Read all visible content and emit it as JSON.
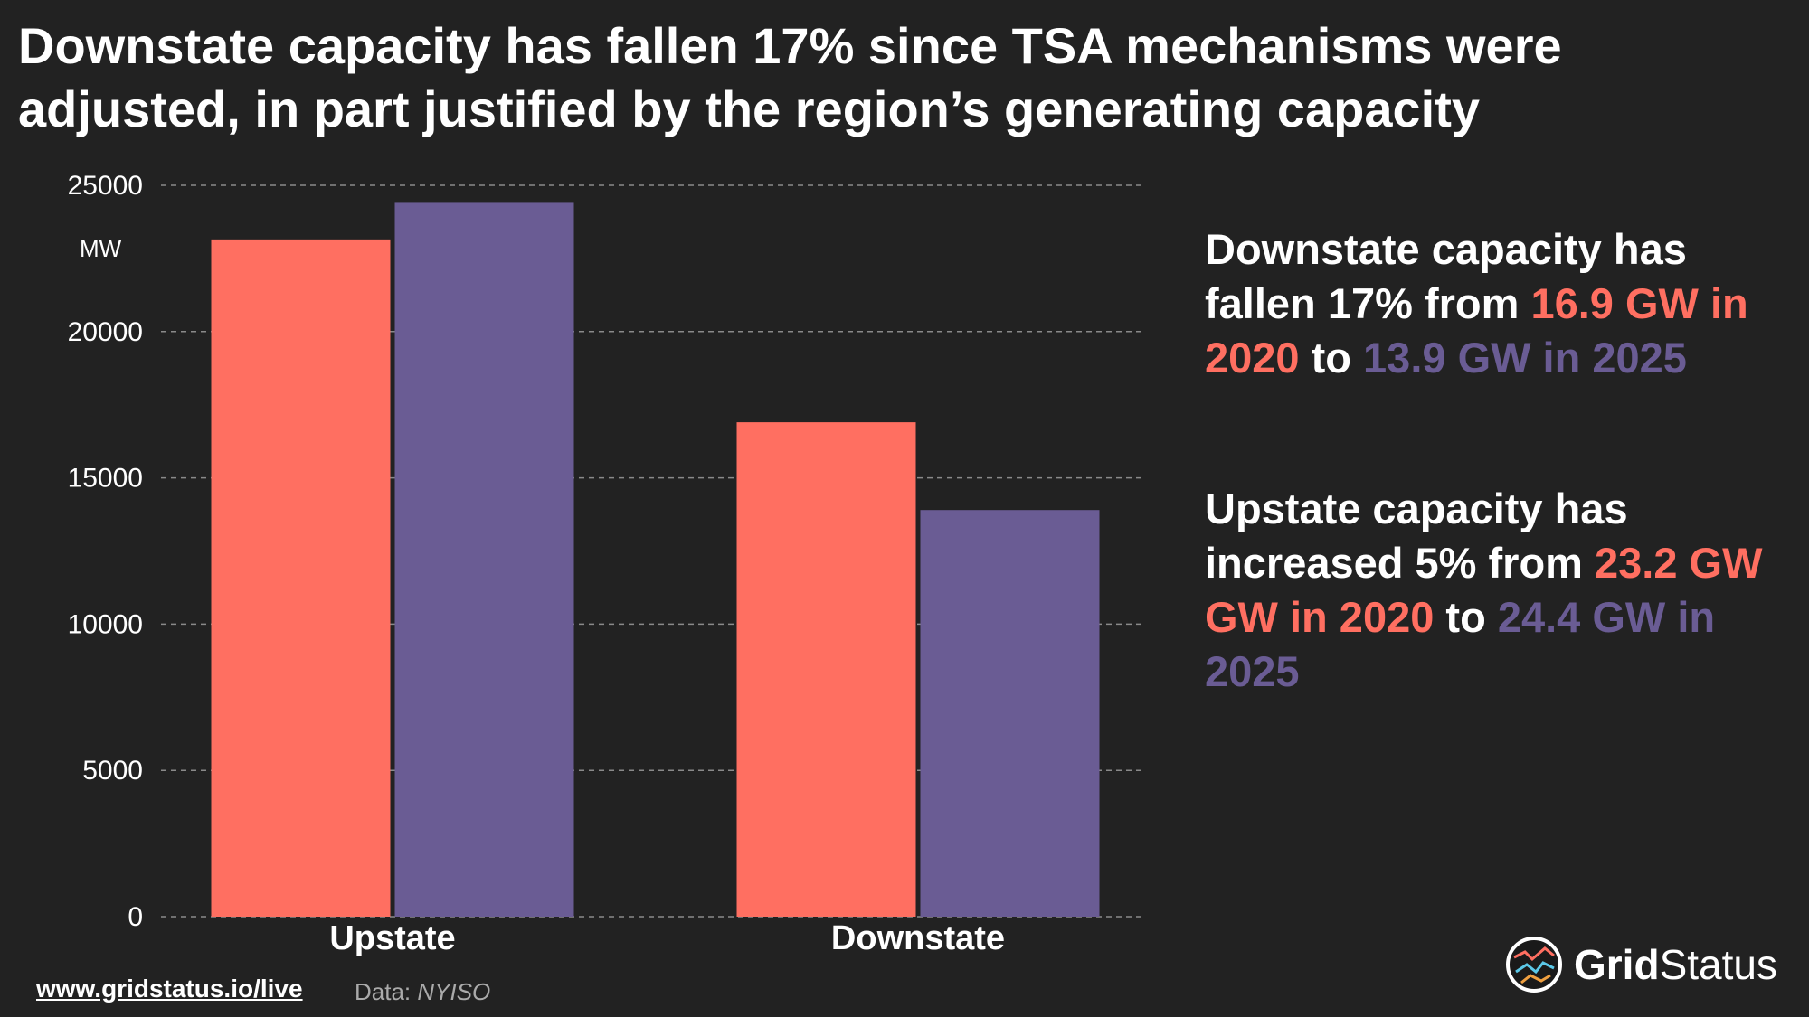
{
  "title": "Downstate capacity has fallen 17% since TSA mechanisms were adjusted, in part justified by the region’s generating capacity",
  "colors": {
    "y2020": "#ff6f61",
    "y2025": "#6a5c94",
    "background": "#222222"
  },
  "chart_data": {
    "type": "bar",
    "title": "Downstate capacity has fallen 17% since TSA mechanisms were adjusted, in part justified by the region’s generating capacity",
    "xlabel": "",
    "ylabel": "MW",
    "ylim": [
      0,
      25000
    ],
    "yticks": [
      0,
      5000,
      10000,
      15000,
      20000,
      25000
    ],
    "grid": true,
    "categories": [
      "Upstate",
      "Downstate"
    ],
    "series": [
      {
        "name": "2020",
        "color": "#ff6f61",
        "values": [
          23150,
          16900
        ]
      },
      {
        "name": "2025",
        "color": "#6a5c94",
        "values": [
          24400,
          13900
        ]
      }
    ]
  },
  "annotations": {
    "downstate": {
      "p1": "Downstate capacity has fallen 17% from ",
      "v1": "16.9 GW in 2020",
      "p2": " to ",
      "v2": "13.9 GW in 2025"
    },
    "upstate": {
      "p1": "Upstate capacity has increased 5% from ",
      "v1": "23.2 GW GW in 2020",
      "p2": " to ",
      "v2": "24.4 GW in 2025"
    }
  },
  "footer": {
    "link": "www.gridstatus.io/live",
    "source_label": "Data: ",
    "source_value": "NYISO"
  },
  "brand": {
    "name_bold": "Grid",
    "name_rest": "Status"
  }
}
